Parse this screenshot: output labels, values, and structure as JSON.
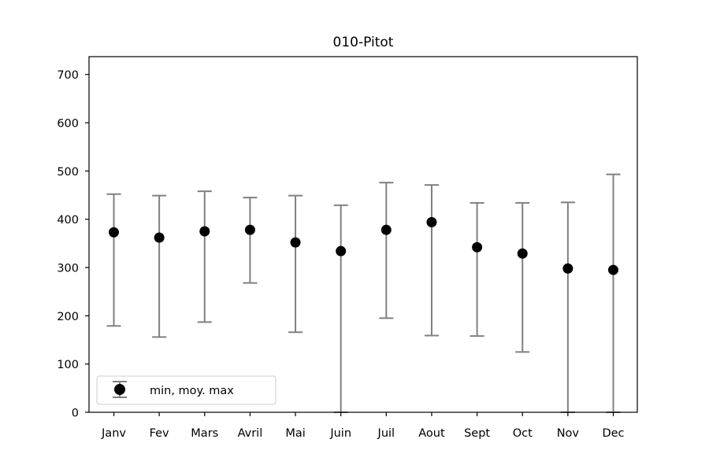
{
  "chart_data": {
    "type": "scatter",
    "title": "010-Pitot",
    "xlabel": "",
    "ylabel": "",
    "categories": [
      "Janv",
      "Fev",
      "Mars",
      "Avril",
      "Mai",
      "Juin",
      "Juil",
      "Aout",
      "Sept",
      "Oct",
      "Nov",
      "Dec"
    ],
    "series": [
      {
        "name": "min, moy. max",
        "mean": [
          373,
          362,
          375,
          378,
          352,
          334,
          378,
          394,
          342,
          329,
          298,
          295
        ],
        "min": [
          179,
          156,
          187,
          268,
          166,
          0,
          195,
          159,
          158,
          125,
          0,
          0
        ],
        "max": [
          452,
          449,
          458,
          445,
          449,
          429,
          476,
          471,
          434,
          434,
          435,
          493
        ]
      }
    ],
    "ylim": [
      0,
      737
    ],
    "yticks": [
      0,
      100,
      200,
      300,
      400,
      500,
      600,
      700
    ],
    "grid": false,
    "legend_position": "lower-left",
    "colors": {
      "marker": "#000000",
      "errorbar": "#808080",
      "axes": "#000000"
    }
  }
}
